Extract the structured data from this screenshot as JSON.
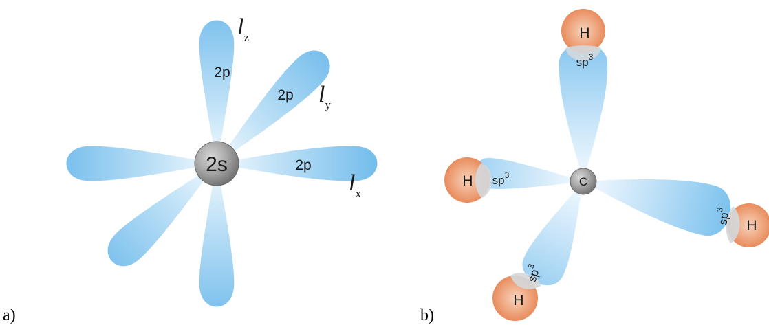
{
  "panel_a": {
    "caption": "a)",
    "center_label": "2s",
    "lobe_labels": {
      "z": "2p",
      "y": "2p",
      "x": "2p"
    },
    "axis_letter": "l",
    "axis_subscripts": {
      "z": "z",
      "y": "y",
      "x": "x"
    }
  },
  "panel_b": {
    "caption": "b)",
    "center_label": "C",
    "hybrid_label": "sp",
    "hybrid_sup": "3",
    "hydrogen_labels": [
      "H",
      "H",
      "H",
      "H"
    ]
  },
  "colors": {
    "orbital_outer": "#6ab8ea",
    "orbital_inner": "#eef7fd",
    "sphere_gray": "#8a8a8a",
    "hydrogen": "#e8895a",
    "overlap": "#d4d8db"
  }
}
